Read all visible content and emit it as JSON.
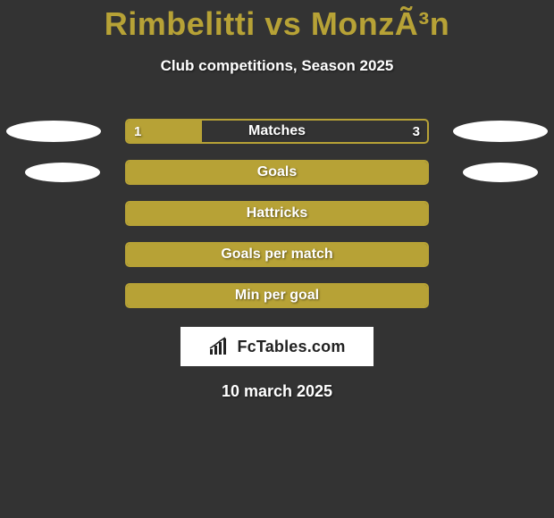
{
  "title": {
    "player1": "Rimbelitti",
    "vs": "vs",
    "player2": "MonzÃ³n",
    "color_p1": "#b7a236",
    "color_vs": "#b7a236",
    "color_p2": "#b7a236"
  },
  "subtitle": "Club competitions, Season 2025",
  "chart": {
    "bar_color": "#b7a236",
    "border_color": "#b7a236",
    "track_bg": "#333333",
    "text_color": "#ffffff",
    "ellipse_color": "#ffffff",
    "rows": [
      {
        "label": "Matches",
        "left_value": "1",
        "right_value": "3",
        "left_pct": 25,
        "right_pct": 0,
        "full": false,
        "show_left_ellipse": true,
        "show_right_ellipse": true,
        "ellipse_size": "large"
      },
      {
        "label": "Goals",
        "left_value": "",
        "right_value": "",
        "left_pct": 0,
        "right_pct": 0,
        "full": true,
        "show_left_ellipse": true,
        "show_right_ellipse": true,
        "ellipse_size": "small"
      },
      {
        "label": "Hattricks",
        "left_value": "",
        "right_value": "",
        "left_pct": 0,
        "right_pct": 0,
        "full": true,
        "show_left_ellipse": false,
        "show_right_ellipse": false,
        "ellipse_size": "small"
      },
      {
        "label": "Goals per match",
        "left_value": "",
        "right_value": "",
        "left_pct": 0,
        "right_pct": 0,
        "full": true,
        "show_left_ellipse": false,
        "show_right_ellipse": false,
        "ellipse_size": "small"
      },
      {
        "label": "Min per goal",
        "left_value": "",
        "right_value": "",
        "left_pct": 0,
        "right_pct": 0,
        "full": true,
        "show_left_ellipse": false,
        "show_right_ellipse": false,
        "ellipse_size": "small"
      }
    ]
  },
  "watermark": "FcTables.com",
  "datestamp": "10 march 2025",
  "colors": {
    "background": "#333333",
    "accent": "#b7a236",
    "text": "#ffffff",
    "white": "#ffffff"
  }
}
